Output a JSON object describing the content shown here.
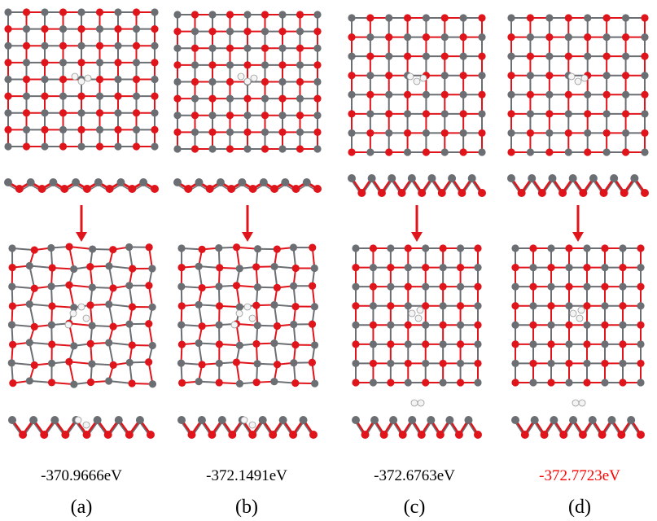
{
  "panels": [
    {
      "energy": "-370.9666eV",
      "label": "(a)"
    },
    {
      "energy": "-372.1491eV",
      "label": "(b)"
    },
    {
      "energy": "-372.6763eV",
      "label": "(c)"
    },
    {
      "energy": "-372.7723eV",
      "label": "(d)"
    }
  ]
}
